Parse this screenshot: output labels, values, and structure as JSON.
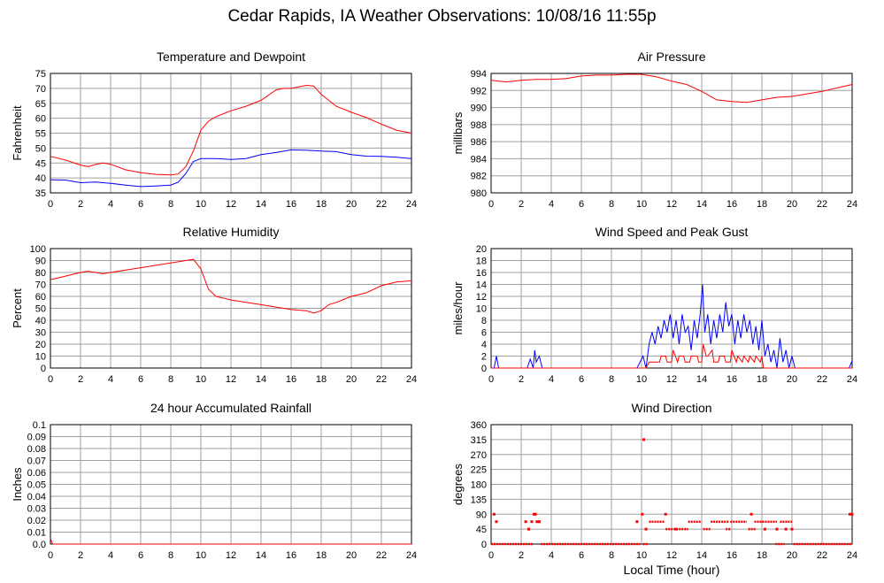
{
  "title": "Cedar Rapids, IA Weather Observations: 10/08/16 11:55p",
  "colors": {
    "red": "#ff0000",
    "blue": "#0000ff",
    "grid": "#a0a0a0"
  },
  "chart_data": [
    {
      "id": "temp",
      "type": "line",
      "title": "Temperature and Dewpoint",
      "ylabel": "Fahrenheit",
      "xlabel": "",
      "xlim": [
        0,
        24
      ],
      "ylim": [
        35,
        75
      ],
      "xticks": [
        0,
        2,
        4,
        6,
        8,
        10,
        12,
        14,
        16,
        18,
        20,
        22,
        24
      ],
      "yticks": [
        35,
        40,
        45,
        50,
        55,
        60,
        65,
        70,
        75
      ],
      "ytick_labels": [
        "35",
        "40",
        "45",
        "50",
        "55",
        "60",
        "65",
        "70",
        "75"
      ],
      "series": [
        {
          "color": "#ff0000",
          "x": [
            0,
            1,
            2,
            2.5,
            3,
            3.5,
            4,
            5,
            6,
            7,
            8,
            8.5,
            9,
            9.5,
            10,
            10.5,
            11,
            12,
            13,
            14,
            15,
            15.5,
            16,
            17,
            17.5,
            18,
            19,
            20,
            21,
            22,
            23,
            24
          ],
          "y": [
            47.2,
            46,
            44.3,
            43.8,
            44.5,
            45,
            44.6,
            42.7,
            41.8,
            41.2,
            41,
            41.3,
            43.8,
            49,
            56,
            59,
            60.5,
            62.5,
            64,
            66,
            69.5,
            70,
            70,
            71,
            70.8,
            68,
            64,
            62,
            60.2,
            58,
            56,
            55
          ]
        },
        {
          "color": "#0000ff",
          "x": [
            0,
            1,
            2,
            3,
            4,
            5,
            6,
            7,
            8,
            8.5,
            9,
            9.5,
            10,
            11,
            12,
            13,
            14,
            15,
            16,
            17,
            18,
            19,
            20,
            21,
            22,
            23,
            24
          ],
          "y": [
            39.4,
            39.3,
            38.4,
            38.6,
            38.2,
            37.6,
            37.1,
            37.3,
            37.6,
            38.6,
            41.5,
            45.5,
            46.5,
            46.5,
            46.2,
            46.5,
            47.8,
            48.5,
            49.4,
            49.3,
            49,
            48.8,
            47.8,
            47.3,
            47.2,
            46.9,
            46.5
          ]
        }
      ]
    },
    {
      "id": "pressure",
      "type": "line",
      "title": "Air Pressure",
      "ylabel": "millibars",
      "xlabel": "",
      "xlim": [
        0,
        24
      ],
      "ylim": [
        980,
        994
      ],
      "xticks": [
        0,
        2,
        4,
        6,
        8,
        10,
        12,
        14,
        16,
        18,
        20,
        22,
        24
      ],
      "yticks": [
        980,
        982,
        984,
        986,
        988,
        990,
        992,
        994
      ],
      "ytick_labels": [
        "980",
        "982",
        "984",
        "986",
        "988",
        "990",
        "992",
        "994"
      ],
      "series": [
        {
          "color": "#ff0000",
          "x": [
            0,
            1,
            2,
            3,
            4,
            5,
            6,
            7,
            8,
            9,
            10,
            11,
            12,
            13,
            14,
            15,
            16,
            17,
            18,
            19,
            20,
            21,
            22,
            23,
            24
          ],
          "y": [
            993.2,
            993.0,
            993.2,
            993.3,
            993.3,
            993.4,
            993.7,
            993.8,
            993.8,
            993.9,
            993.9,
            993.6,
            993.1,
            992.7,
            991.9,
            990.9,
            990.7,
            990.6,
            990.9,
            991.2,
            991.3,
            991.6,
            991.9,
            992.3,
            992.7
          ]
        }
      ]
    },
    {
      "id": "humidity",
      "type": "line",
      "title": "Relative Humidity",
      "ylabel": "Percent",
      "xlabel": "",
      "xlim": [
        0,
        24
      ],
      "ylim": [
        0,
        100
      ],
      "xticks": [
        0,
        2,
        4,
        6,
        8,
        10,
        12,
        14,
        16,
        18,
        20,
        22,
        24
      ],
      "yticks": [
        0,
        10,
        20,
        30,
        40,
        50,
        60,
        70,
        80,
        90,
        100
      ],
      "ytick_labels": [
        "0",
        "10",
        "20",
        "30",
        "40",
        "50",
        "60",
        "70",
        "80",
        "90",
        "100"
      ],
      "series": [
        {
          "color": "#ff0000",
          "x": [
            0,
            1,
            2,
            2.5,
            3,
            3.5,
            4,
            5,
            6,
            7,
            8,
            9,
            9.5,
            10,
            10.5,
            11,
            12,
            13,
            14,
            15,
            16,
            17,
            17.5,
            18,
            18.5,
            19,
            20,
            21,
            22,
            23,
            24
          ],
          "y": [
            74,
            77,
            80,
            81,
            80,
            79,
            80,
            82,
            84,
            86,
            88,
            90,
            91,
            83,
            66,
            60,
            57,
            55,
            53,
            51,
            49,
            48,
            46,
            48,
            53,
            55,
            60,
            63,
            69,
            72,
            73
          ]
        }
      ]
    },
    {
      "id": "wind",
      "type": "line",
      "title": "Wind Speed and Peak Gust",
      "ylabel": "miles/hour",
      "xlabel": "",
      "xlim": [
        0,
        24
      ],
      "ylim": [
        0,
        20
      ],
      "xticks": [
        0,
        2,
        4,
        6,
        8,
        10,
        12,
        14,
        16,
        18,
        20,
        22,
        24
      ],
      "yticks": [
        0,
        2,
        4,
        6,
        8,
        10,
        12,
        14,
        16,
        18,
        20
      ],
      "ytick_labels": [
        "0",
        "2",
        "4",
        "6",
        "8",
        "10",
        "12",
        "14",
        "16",
        "18",
        "20"
      ],
      "series": [
        {
          "color": "#0000ff",
          "x": [
            0,
            0.2,
            0.35,
            0.5,
            2.4,
            2.6,
            2.8,
            2.9,
            3.0,
            3.2,
            3.4,
            9.7,
            9.9,
            10.1,
            10.3,
            10.5,
            10.7,
            10.9,
            11.1,
            11.3,
            11.5,
            11.7,
            11.9,
            12.1,
            12.3,
            12.5,
            12.7,
            12.9,
            13.1,
            13.3,
            13.5,
            13.7,
            13.9,
            14.05,
            14.2,
            14.4,
            14.6,
            14.8,
            15.0,
            15.2,
            15.4,
            15.6,
            15.8,
            16.0,
            16.2,
            16.4,
            16.6,
            16.8,
            17.0,
            17.2,
            17.4,
            17.6,
            17.8,
            18.0,
            18.2,
            18.4,
            18.6,
            18.8,
            19.0,
            19.2,
            19.4,
            19.6,
            19.8,
            20.0,
            20.2,
            20.4,
            23.8,
            24
          ],
          "y": [
            0,
            0,
            2,
            0,
            0,
            1.5,
            0,
            3,
            1,
            2,
            0,
            0,
            1,
            2,
            0,
            4,
            6,
            4,
            7,
            5,
            8,
            6,
            9,
            5,
            8,
            4,
            9,
            6,
            7,
            3,
            8,
            5,
            9,
            14,
            6,
            9,
            4,
            8,
            5,
            9,
            6,
            11,
            7,
            9,
            4,
            8,
            5,
            9,
            6,
            8,
            4,
            7,
            3,
            8,
            2,
            4,
            1,
            3,
            0,
            5,
            1,
            3,
            0,
            2,
            0,
            0,
            0,
            1.2
          ]
        },
        {
          "color": "#ff0000",
          "x": [
            0,
            10.3,
            10.5,
            10.7,
            11.2,
            11.3,
            11.6,
            11.7,
            12.0,
            12.1,
            12.4,
            12.5,
            12.8,
            12.9,
            13.2,
            13.3,
            13.7,
            13.8,
            14.0,
            14.1,
            14.3,
            14.4,
            14.7,
            14.8,
            15.1,
            15.2,
            15.5,
            15.6,
            15.9,
            16.0,
            16.3,
            16.4,
            16.7,
            16.8,
            17.1,
            17.2,
            17.5,
            17.6,
            17.9,
            18.0,
            18.1,
            24
          ],
          "y": [
            0,
            0,
            1,
            1,
            1,
            2,
            2,
            1,
            1,
            3,
            1,
            2,
            2,
            1,
            1,
            2,
            2,
            1,
            1,
            4,
            2,
            2,
            3,
            1,
            1,
            2,
            2,
            1,
            1,
            3,
            1,
            2,
            1,
            2,
            1,
            2,
            1,
            2,
            1,
            2,
            0,
            0
          ]
        }
      ]
    },
    {
      "id": "rain",
      "type": "line",
      "title": "24 hour Accumulated Rainfall",
      "ylabel": "Inches",
      "xlabel": "",
      "xlim": [
        0,
        24
      ],
      "ylim": [
        0,
        0.1
      ],
      "xticks": [
        0,
        2,
        4,
        6,
        8,
        10,
        12,
        14,
        16,
        18,
        20,
        22,
        24
      ],
      "yticks": [
        0,
        0.01,
        0.02,
        0.03,
        0.04,
        0.05,
        0.06,
        0.07,
        0.08,
        0.09,
        0.1
      ],
      "ytick_labels": [
        "0.0",
        "0.01",
        "0.02",
        "0.03",
        "0.04",
        "0.05",
        "0.06",
        "0.07",
        "0.08",
        "0.09",
        "0.1"
      ],
      "series": [
        {
          "color": "#ff0000",
          "x": [
            0,
            0.05,
            0.15,
            24
          ],
          "y": [
            0.005,
            0.003,
            0,
            0
          ]
        }
      ]
    },
    {
      "id": "direction",
      "type": "scatter",
      "title": "Wind Direction",
      "ylabel": "degrees",
      "xlabel": "Local Time (hour)",
      "xlim": [
        0,
        24
      ],
      "ylim": [
        0,
        360
      ],
      "xticks": [
        0,
        2,
        4,
        6,
        8,
        10,
        12,
        14,
        16,
        18,
        20,
        22,
        24
      ],
      "yticks": [
        0,
        45,
        90,
        135,
        180,
        225,
        270,
        315,
        360
      ],
      "ytick_labels": [
        "0",
        "45",
        "90",
        "135",
        "180",
        "225",
        "270",
        "315",
        "360"
      ],
      "series": [
        {
          "color": "#ff0000",
          "segments": [
            [
              0,
              2.8,
              0
            ],
            [
              3.3,
              9.9,
              0
            ],
            [
              10.1,
              10.4,
              0
            ],
            [
              18.9,
              19.5,
              0
            ],
            [
              20.1,
              24,
              0
            ],
            [
              10.5,
              11.5,
              67.5
            ],
            [
              11.6,
              13.1,
              45
            ],
            [
              13.1,
              14.0,
              67.5
            ],
            [
              14.1,
              14.6,
              45
            ],
            [
              14.6,
              15.8,
              67.5
            ],
            [
              15.6,
              15.9,
              45
            ],
            [
              15.9,
              17.0,
              67.5
            ],
            [
              17.1,
              17.6,
              45
            ],
            [
              17.5,
              19.0,
              67.5
            ],
            [
              19.2,
              20.0,
              67.5
            ]
          ],
          "points": [
            [
              0.2,
              90
            ],
            [
              0.35,
              67.5
            ],
            [
              2.3,
              67.5
            ],
            [
              2.5,
              45
            ],
            [
              2.7,
              67.5
            ],
            [
              2.85,
              90
            ],
            [
              2.95,
              90
            ],
            [
              3.05,
              67.5
            ],
            [
              3.2,
              67.5
            ],
            [
              9.7,
              67.5
            ],
            [
              10.05,
              90
            ],
            [
              10.15,
              315
            ],
            [
              10.3,
              45
            ],
            [
              11.6,
              90
            ],
            [
              12.3,
              45
            ],
            [
              17.3,
              90
            ],
            [
              18.2,
              45
            ],
            [
              19.0,
              45
            ],
            [
              19.6,
              45
            ],
            [
              20.0,
              45
            ],
            [
              23.85,
              90
            ],
            [
              24,
              90
            ]
          ]
        }
      ]
    }
  ]
}
